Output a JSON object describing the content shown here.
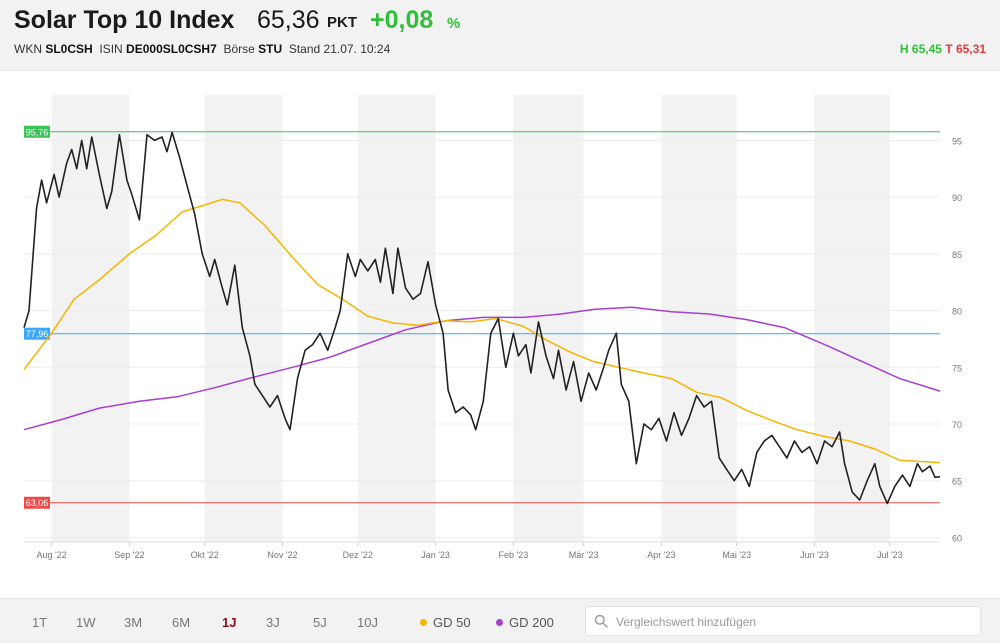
{
  "header": {
    "title": "Solar Top 10 Index",
    "price": "65,36",
    "unit": "PKT",
    "change": "+0,08",
    "change_unit": "%",
    "wkn_label": "WKN",
    "wkn": "SL0CSH",
    "isin_label": "ISIN",
    "isin": "DE000SL0CSH7",
    "exchange_label": "Börse",
    "exchange": "STU",
    "stand_label": "Stand",
    "stand": "21.07. 10:24",
    "high": "H 65,45",
    "low": "T 65,31"
  },
  "colors": {
    "price_line": "#222222",
    "gd50": "#f5b400",
    "gd200": "#a63fd1",
    "high_line": "#3cc35a",
    "mid_line": "#3aa6ff",
    "low_line": "#ee4a4a",
    "band": "#f2f2f2"
  },
  "chart_data": {
    "type": "line",
    "x_ticks": [
      "Aug '22",
      "Sep '22",
      "Okt '22",
      "Nov '22",
      "Dez '22",
      "Jan '23",
      "Feb '23",
      "Mär '23",
      "Apr '23",
      "Mai '23",
      "Jun '23",
      "Jul '23"
    ],
    "y_ticks": [
      60,
      65,
      70,
      75,
      80,
      85,
      90,
      95
    ],
    "ylim": [
      59.6,
      99.0
    ],
    "xlim": [
      "2022-07-21",
      "2023-07-21"
    ],
    "ref_lines": [
      {
        "label": "95,76",
        "value": 95.76,
        "color": "#3cc35a"
      },
      {
        "label": "77,96",
        "value": 77.96,
        "color": "#3aa6ff"
      },
      {
        "label": "63,06",
        "value": 63.06,
        "color": "#ee4a4a"
      }
    ],
    "series": [
      {
        "name": "Solar Top 10 Index",
        "color": "#222222",
        "points": [
          [
            "2022-07-21",
            78.5
          ],
          [
            "2022-07-23",
            80.0
          ],
          [
            "2022-07-26",
            89.0
          ],
          [
            "2022-07-28",
            91.5
          ],
          [
            "2022-07-30",
            89.5
          ],
          [
            "2022-08-02",
            92.0
          ],
          [
            "2022-08-04",
            90.0
          ],
          [
            "2022-08-07",
            93.0
          ],
          [
            "2022-08-09",
            94.2
          ],
          [
            "2022-08-11",
            92.5
          ],
          [
            "2022-08-13",
            95.0
          ],
          [
            "2022-08-15",
            92.5
          ],
          [
            "2022-08-17",
            95.3
          ],
          [
            "2022-08-20",
            92.0
          ],
          [
            "2022-08-23",
            89.0
          ],
          [
            "2022-08-25",
            90.5
          ],
          [
            "2022-08-28",
            95.5
          ],
          [
            "2022-08-31",
            91.5
          ],
          [
            "2022-09-02",
            90.2
          ],
          [
            "2022-09-05",
            88.0
          ],
          [
            "2022-09-08",
            95.5
          ],
          [
            "2022-09-11",
            95.0
          ],
          [
            "2022-09-14",
            95.3
          ],
          [
            "2022-09-16",
            94.0
          ],
          [
            "2022-09-18",
            95.7
          ],
          [
            "2022-09-21",
            93.5
          ],
          [
            "2022-09-24",
            91.0
          ],
          [
            "2022-09-27",
            88.5
          ],
          [
            "2022-09-30",
            85.0
          ],
          [
            "2022-10-03",
            83.0
          ],
          [
            "2022-10-05",
            84.5
          ],
          [
            "2022-10-08",
            82.0
          ],
          [
            "2022-10-10",
            80.5
          ],
          [
            "2022-10-13",
            84.0
          ],
          [
            "2022-10-16",
            78.5
          ],
          [
            "2022-10-19",
            76.0
          ],
          [
            "2022-10-21",
            73.5
          ],
          [
            "2022-10-24",
            72.5
          ],
          [
            "2022-10-27",
            71.5
          ],
          [
            "2022-10-30",
            72.5
          ],
          [
            "2022-11-02",
            70.5
          ],
          [
            "2022-11-04",
            69.5
          ],
          [
            "2022-11-07",
            74.0
          ],
          [
            "2022-11-10",
            76.5
          ],
          [
            "2022-11-13",
            77.0
          ],
          [
            "2022-11-16",
            78.0
          ],
          [
            "2022-11-19",
            76.5
          ],
          [
            "2022-11-22",
            78.5
          ],
          [
            "2022-11-24",
            80.0
          ],
          [
            "2022-11-27",
            85.0
          ],
          [
            "2022-11-30",
            83.0
          ],
          [
            "2022-12-02",
            84.5
          ],
          [
            "2022-12-05",
            83.5
          ],
          [
            "2022-12-08",
            84.5
          ],
          [
            "2022-12-10",
            82.5
          ],
          [
            "2022-12-12",
            85.5
          ],
          [
            "2022-12-15",
            81.5
          ],
          [
            "2022-12-17",
            85.5
          ],
          [
            "2022-12-20",
            82.0
          ],
          [
            "2022-12-23",
            81.0
          ],
          [
            "2022-12-26",
            81.5
          ],
          [
            "2022-12-29",
            84.3
          ],
          [
            "2023-01-01",
            80.5
          ],
          [
            "2023-01-04",
            78.0
          ],
          [
            "2023-01-06",
            73.0
          ],
          [
            "2023-01-09",
            71.0
          ],
          [
            "2023-01-12",
            71.5
          ],
          [
            "2023-01-15",
            70.8
          ],
          [
            "2023-01-17",
            69.5
          ],
          [
            "2023-01-20",
            72.0
          ],
          [
            "2023-01-23",
            78.0
          ],
          [
            "2023-01-26",
            79.3
          ],
          [
            "2023-01-29",
            75.0
          ],
          [
            "2023-02-01",
            78.0
          ],
          [
            "2023-02-03",
            76.0
          ],
          [
            "2023-02-06",
            77.0
          ],
          [
            "2023-02-08",
            74.5
          ],
          [
            "2023-02-11",
            79.0
          ],
          [
            "2023-02-14",
            76.0
          ],
          [
            "2023-02-17",
            74.0
          ],
          [
            "2023-02-19",
            76.5
          ],
          [
            "2023-02-22",
            73.0
          ],
          [
            "2023-02-25",
            75.5
          ],
          [
            "2023-02-28",
            72.0
          ],
          [
            "2023-03-03",
            74.5
          ],
          [
            "2023-03-06",
            73.0
          ],
          [
            "2023-03-09",
            75.0
          ],
          [
            "2023-03-11",
            76.5
          ],
          [
            "2023-03-14",
            78.0
          ],
          [
            "2023-03-16",
            73.5
          ],
          [
            "2023-03-19",
            72.0
          ],
          [
            "2023-03-22",
            66.5
          ],
          [
            "2023-03-25",
            70.0
          ],
          [
            "2023-03-28",
            69.5
          ],
          [
            "2023-03-31",
            70.5
          ],
          [
            "2023-04-03",
            68.5
          ],
          [
            "2023-04-06",
            71.0
          ],
          [
            "2023-04-09",
            69.0
          ],
          [
            "2023-04-12",
            70.5
          ],
          [
            "2023-04-15",
            72.5
          ],
          [
            "2023-04-18",
            71.5
          ],
          [
            "2023-04-21",
            72.0
          ],
          [
            "2023-04-24",
            67.0
          ],
          [
            "2023-04-27",
            66.0
          ],
          [
            "2023-04-30",
            65.0
          ],
          [
            "2023-05-03",
            66.0
          ],
          [
            "2023-05-06",
            64.5
          ],
          [
            "2023-05-09",
            67.5
          ],
          [
            "2023-05-12",
            68.5
          ],
          [
            "2023-05-15",
            69.0
          ],
          [
            "2023-05-18",
            68.0
          ],
          [
            "2023-05-21",
            67.0
          ],
          [
            "2023-05-24",
            68.5
          ],
          [
            "2023-05-27",
            67.5
          ],
          [
            "2023-05-30",
            68.0
          ],
          [
            "2023-06-02",
            66.5
          ],
          [
            "2023-06-05",
            68.5
          ],
          [
            "2023-06-08",
            68.0
          ],
          [
            "2023-06-11",
            69.3
          ],
          [
            "2023-06-13",
            66.5
          ],
          [
            "2023-06-16",
            64.0
          ],
          [
            "2023-06-19",
            63.3
          ],
          [
            "2023-06-22",
            65.0
          ],
          [
            "2023-06-25",
            66.5
          ],
          [
            "2023-06-27",
            64.5
          ],
          [
            "2023-06-30",
            63.0
          ],
          [
            "2023-07-03",
            64.5
          ],
          [
            "2023-07-06",
            65.5
          ],
          [
            "2023-07-09",
            64.5
          ],
          [
            "2023-07-12",
            66.5
          ],
          [
            "2023-07-14",
            65.8
          ],
          [
            "2023-07-17",
            66.3
          ],
          [
            "2023-07-19",
            65.3
          ],
          [
            "2023-07-21",
            65.36
          ]
        ]
      },
      {
        "name": "GD 50",
        "color": "#f5b400",
        "points": [
          [
            "2022-07-21",
            74.8
          ],
          [
            "2022-08-01",
            78.0
          ],
          [
            "2022-08-10",
            81.0
          ],
          [
            "2022-08-20",
            82.7
          ],
          [
            "2022-09-01",
            85.0
          ],
          [
            "2022-09-12",
            86.7
          ],
          [
            "2022-09-22",
            88.7
          ],
          [
            "2022-10-01",
            89.3
          ],
          [
            "2022-10-08",
            89.8
          ],
          [
            "2022-10-15",
            89.5
          ],
          [
            "2022-10-25",
            87.5
          ],
          [
            "2022-11-05",
            84.7
          ],
          [
            "2022-11-15",
            82.3
          ],
          [
            "2022-11-25",
            81.0
          ],
          [
            "2022-12-05",
            79.5
          ],
          [
            "2022-12-15",
            78.9
          ],
          [
            "2022-12-25",
            78.7
          ],
          [
            "2023-01-05",
            79.1
          ],
          [
            "2023-01-15",
            79.0
          ],
          [
            "2023-01-25",
            79.3
          ],
          [
            "2023-02-05",
            78.6
          ],
          [
            "2023-02-15",
            77.3
          ],
          [
            "2023-02-25",
            76.2
          ],
          [
            "2023-03-05",
            75.5
          ],
          [
            "2023-03-15",
            75.0
          ],
          [
            "2023-03-25",
            74.5
          ],
          [
            "2023-04-05",
            74.0
          ],
          [
            "2023-04-15",
            72.8
          ],
          [
            "2023-04-25",
            72.3
          ],
          [
            "2023-05-05",
            71.2
          ],
          [
            "2023-05-15",
            70.3
          ],
          [
            "2023-05-25",
            69.5
          ],
          [
            "2023-06-05",
            68.9
          ],
          [
            "2023-06-15",
            68.5
          ],
          [
            "2023-06-25",
            67.8
          ],
          [
            "2023-07-05",
            66.8
          ],
          [
            "2023-07-21",
            66.6
          ]
        ]
      },
      {
        "name": "GD 200",
        "color": "#a63fd1",
        "points": [
          [
            "2022-07-21",
            69.5
          ],
          [
            "2022-08-05",
            70.4
          ],
          [
            "2022-08-20",
            71.4
          ],
          [
            "2022-09-05",
            72.0
          ],
          [
            "2022-09-20",
            72.4
          ],
          [
            "2022-10-05",
            73.2
          ],
          [
            "2022-10-20",
            74.1
          ],
          [
            "2022-11-05",
            75.0
          ],
          [
            "2022-11-20",
            75.9
          ],
          [
            "2022-12-05",
            77.1
          ],
          [
            "2022-12-20",
            78.3
          ],
          [
            "2023-01-05",
            79.1
          ],
          [
            "2023-01-20",
            79.4
          ],
          [
            "2023-02-05",
            79.4
          ],
          [
            "2023-02-20",
            79.7
          ],
          [
            "2023-03-05",
            80.1
          ],
          [
            "2023-03-20",
            80.3
          ],
          [
            "2023-04-05",
            79.9
          ],
          [
            "2023-04-20",
            79.7
          ],
          [
            "2023-05-05",
            79.2
          ],
          [
            "2023-05-20",
            78.5
          ],
          [
            "2023-06-05",
            77.0
          ],
          [
            "2023-06-20",
            75.5
          ],
          [
            "2023-07-05",
            74.0
          ],
          [
            "2023-07-21",
            72.9
          ]
        ]
      }
    ]
  },
  "footer": {
    "ranges": [
      "1T",
      "1W",
      "3M",
      "6M",
      "1J",
      "3J",
      "5J",
      "10J"
    ],
    "active_range": "1J",
    "legend": [
      {
        "label": "GD 50",
        "color": "#f5b400"
      },
      {
        "label": "GD 200",
        "color": "#a63fd1"
      }
    ],
    "search_placeholder": "Vergleichswert hinzufügen"
  }
}
